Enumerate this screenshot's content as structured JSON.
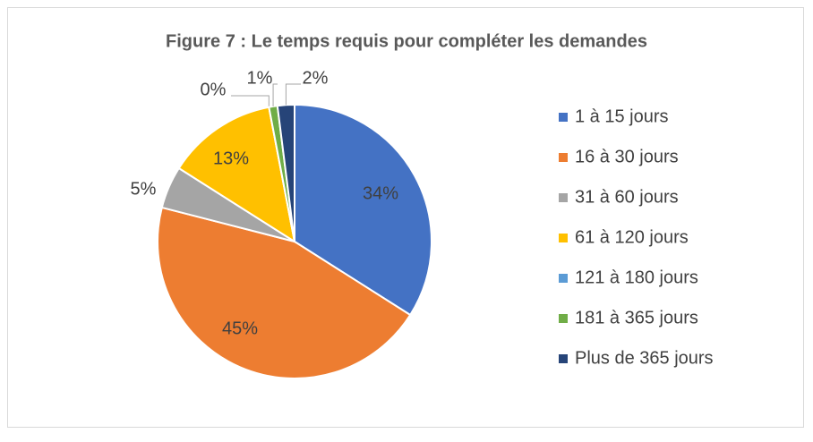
{
  "chart_data": {
    "type": "pie",
    "title": "Figure 7 : Le temps requis pour compléter les demandes",
    "categories": [
      "1 à 15 jours",
      "16 à 30 jours",
      "31 à 60 jours",
      "61 à 120 jours",
      "121 à 180 jours",
      "181 à 365 jours",
      "Plus de 365 jours"
    ],
    "values": [
      34,
      45,
      5,
      13,
      0,
      1,
      2
    ],
    "value_labels": [
      "34%",
      "45%",
      "5%",
      "13%",
      "0%",
      "1%",
      "2%"
    ],
    "colors": [
      "#4472c4",
      "#ed7d31",
      "#a5a5a5",
      "#ffc000",
      "#5b9bd5",
      "#70ad47",
      "#264478"
    ],
    "legend": "right"
  }
}
